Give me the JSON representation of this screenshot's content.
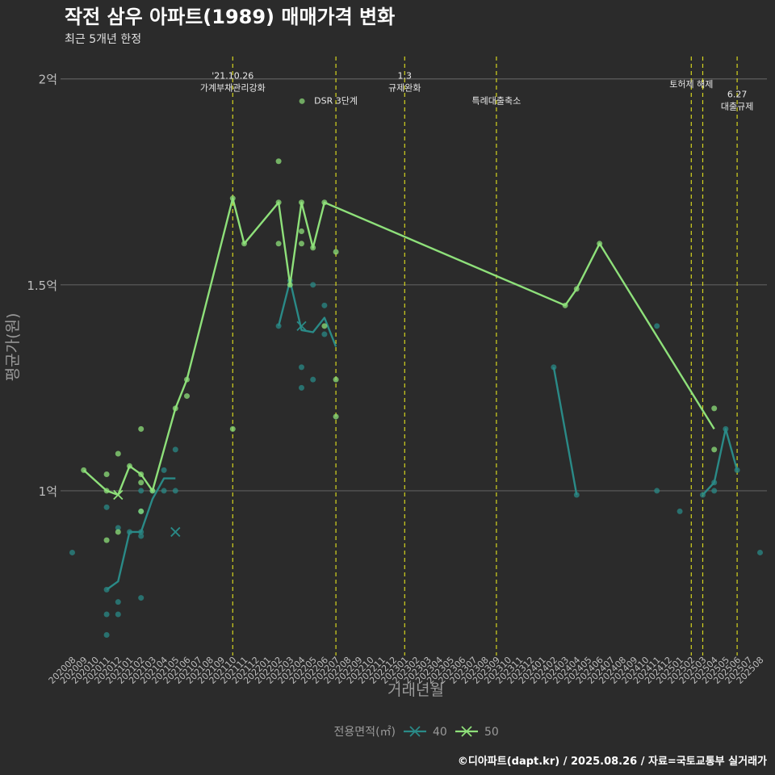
{
  "chart_data": {
    "type": "line",
    "title": "작전 삼우 아파트(1989) 매매가격 변화",
    "subtitle": "최근 5개년 한정",
    "xlabel": "거래년월",
    "ylabel": "평균가(원)",
    "caption": "©디아파트(dapt.kr) / 2025.08.26 / 자료=국토교통부 실거래가",
    "legend_title": "전용면적(㎡)",
    "legend_position": "bottom",
    "grid": true,
    "x_categories": [
      "202008",
      "202009",
      "202010",
      "202011",
      "202012",
      "202101",
      "202102",
      "202103",
      "202104",
      "202105",
      "202106",
      "202107",
      "202108",
      "202109",
      "202110",
      "202111",
      "202112",
      "202201",
      "202202",
      "202203",
      "202204",
      "202205",
      "202206",
      "202207",
      "202208",
      "202209",
      "202210",
      "202211",
      "202212",
      "202301",
      "202302",
      "202303",
      "202304",
      "202305",
      "202306",
      "202307",
      "202308",
      "202309",
      "202310",
      "202311",
      "202312",
      "202401",
      "202402",
      "202403",
      "202404",
      "202405",
      "202406",
      "202407",
      "202408",
      "202409",
      "202410",
      "202411",
      "202412",
      "202501",
      "202502",
      "202503",
      "202504",
      "202505",
      "202506",
      "202507",
      "202508"
    ],
    "y_unit": "억",
    "y_ticks": [
      {
        "value": 1.0,
        "label": "1억"
      },
      {
        "value": 1.5,
        "label": "1.5억"
      },
      {
        "value": 2.0,
        "label": "2억"
      }
    ],
    "ylim": [
      0.6,
      2.07
    ],
    "colors": {
      "40": "#2a8a87",
      "50": "#8ee07a",
      "event": "#d4d41e",
      "background": "#2b2b2b",
      "grid": "#5e5e5e",
      "text": "#bdbdbd",
      "title": "#ffffff"
    },
    "events": [
      {
        "x": "202110",
        "lines": [
          "'21.10.26",
          "가계부채관리강화"
        ],
        "label_y": 2.0
      },
      {
        "x": "202207",
        "lines": [
          "DSR 3단계"
        ],
        "label_y": 1.94,
        "dot": true
      },
      {
        "x": "202301",
        "lines": [
          "1.3",
          "규제완화"
        ],
        "label_y": 2.0
      },
      {
        "x": "202309",
        "lines": [
          "특례대출축소"
        ],
        "label_y": 1.94
      },
      {
        "x": "202502",
        "lines": [
          "토허제 해제"
        ],
        "label_y": 1.98
      },
      {
        "x": "202503",
        "lines": [],
        "label_y": 1.98
      },
      {
        "x": "202506",
        "lines": [
          "6.27",
          "대출규제"
        ],
        "label_y": 1.955
      }
    ],
    "series": [
      {
        "name": "40",
        "line": [
          {
            "x": "202011",
            "y": 0.76
          },
          {
            "x": "202012",
            "y": 0.78
          },
          {
            "x": "202101",
            "y": 0.9
          },
          {
            "x": "202102",
            "y": 0.9
          },
          {
            "x": "202103",
            "y": 0.98
          },
          {
            "x": "202104",
            "y": 1.03
          },
          {
            "x": "202105",
            "y": 1.03
          },
          {
            "x": "202202",
            "y": 1.4
          },
          {
            "x": "202203",
            "y": 1.51
          },
          {
            "x": "202204",
            "y": 1.39
          },
          {
            "x": "202205",
            "y": 1.385
          },
          {
            "x": "202206",
            "y": 1.42
          },
          {
            "x": "202207",
            "y": 1.35
          },
          {
            "x": "202402",
            "y": 1.3
          },
          {
            "x": "202404",
            "y": 0.99
          },
          {
            "x": "202503",
            "y": 0.99
          },
          {
            "x": "202504",
            "y": 1.02
          },
          {
            "x": "202505",
            "y": 1.15
          },
          {
            "x": "202506",
            "y": 1.05
          }
        ],
        "points": [
          {
            "x": "202008",
            "y": 0.85
          },
          {
            "x": "202011",
            "y": 0.96
          },
          {
            "x": "202011",
            "y": 0.76
          },
          {
            "x": "202011",
            "y": 0.7
          },
          {
            "x": "202011",
            "y": 0.65
          },
          {
            "x": "202012",
            "y": 0.91
          },
          {
            "x": "202012",
            "y": 0.73
          },
          {
            "x": "202012",
            "y": 0.7
          },
          {
            "x": "202101",
            "y": 0.9
          },
          {
            "x": "202102",
            "y": 1.0
          },
          {
            "x": "202102",
            "y": 0.95
          },
          {
            "x": "202102",
            "y": 0.9
          },
          {
            "x": "202102",
            "y": 0.89
          },
          {
            "x": "202102",
            "y": 0.74
          },
          {
            "x": "202103",
            "y": 1.0
          },
          {
            "x": "202104",
            "y": 1.05
          },
          {
            "x": "202104",
            "y": 1.0
          },
          {
            "x": "202105",
            "y": 1.1
          },
          {
            "x": "202105",
            "y": 1.0
          },
          {
            "x": "202202",
            "y": 1.4
          },
          {
            "x": "202203",
            "y": 1.51
          },
          {
            "x": "202204",
            "y": 1.3
          },
          {
            "x": "202204",
            "y": 1.25
          },
          {
            "x": "202205",
            "y": 1.5
          },
          {
            "x": "202205",
            "y": 1.27
          },
          {
            "x": "202206",
            "y": 1.45
          },
          {
            "x": "202206",
            "y": 1.38
          },
          {
            "x": "202402",
            "y": 1.3
          },
          {
            "x": "202404",
            "y": 0.99
          },
          {
            "x": "202411",
            "y": 1.4
          },
          {
            "x": "202411",
            "y": 1.0
          },
          {
            "x": "202501",
            "y": 0.95
          },
          {
            "x": "202503",
            "y": 0.99
          },
          {
            "x": "202504",
            "y": 1.02
          },
          {
            "x": "202504",
            "y": 1.0
          },
          {
            "x": "202505",
            "y": 1.15
          },
          {
            "x": "202506",
            "y": 1.05
          },
          {
            "x": "202508",
            "y": 0.85
          }
        ],
        "cross_points": [
          {
            "x": "202105",
            "y": 0.9
          },
          {
            "x": "202204",
            "y": 1.4
          }
        ]
      },
      {
        "name": "50",
        "line": [
          {
            "x": "202009",
            "y": 1.05
          },
          {
            "x": "202011",
            "y": 1.0
          },
          {
            "x": "202012",
            "y": 0.99
          },
          {
            "x": "202101",
            "y": 1.06
          },
          {
            "x": "202102",
            "y": 1.04
          },
          {
            "x": "202103",
            "y": 1.0
          },
          {
            "x": "202105",
            "y": 1.2
          },
          {
            "x": "202106",
            "y": 1.27
          },
          {
            "x": "202110",
            "y": 1.71
          },
          {
            "x": "202111",
            "y": 1.6
          },
          {
            "x": "202202",
            "y": 1.7
          },
          {
            "x": "202203",
            "y": 1.5
          },
          {
            "x": "202204",
            "y": 1.7
          },
          {
            "x": "202205",
            "y": 1.59
          },
          {
            "x": "202206",
            "y": 1.7
          },
          {
            "x": "202403",
            "y": 1.45
          },
          {
            "x": "202404",
            "y": 1.49
          },
          {
            "x": "202406",
            "y": 1.6
          },
          {
            "x": "202504",
            "y": 1.15
          }
        ],
        "points": [
          {
            "x": "202009",
            "y": 1.05
          },
          {
            "x": "202011",
            "y": 1.04
          },
          {
            "x": "202011",
            "y": 1.0
          },
          {
            "x": "202011",
            "y": 0.88
          },
          {
            "x": "202012",
            "y": 1.09
          },
          {
            "x": "202012",
            "y": 0.9
          },
          {
            "x": "202101",
            "y": 1.06
          },
          {
            "x": "202102",
            "y": 1.15
          },
          {
            "x": "202102",
            "y": 1.04
          },
          {
            "x": "202102",
            "y": 1.02
          },
          {
            "x": "202102",
            "y": 0.95
          },
          {
            "x": "202103",
            "y": 1.0
          },
          {
            "x": "202105",
            "y": 1.2
          },
          {
            "x": "202106",
            "y": 1.27
          },
          {
            "x": "202106",
            "y": 1.23
          },
          {
            "x": "202110",
            "y": 1.71
          },
          {
            "x": "202110",
            "y": 1.15
          },
          {
            "x": "202111",
            "y": 1.6
          },
          {
            "x": "202202",
            "y": 1.8
          },
          {
            "x": "202202",
            "y": 1.7
          },
          {
            "x": "202202",
            "y": 1.6
          },
          {
            "x": "202203",
            "y": 1.5
          },
          {
            "x": "202204",
            "y": 1.7
          },
          {
            "x": "202204",
            "y": 1.63
          },
          {
            "x": "202204",
            "y": 1.6
          },
          {
            "x": "202205",
            "y": 1.59
          },
          {
            "x": "202206",
            "y": 1.7
          },
          {
            "x": "202206",
            "y": 1.4
          },
          {
            "x": "202207",
            "y": 1.58
          },
          {
            "x": "202207",
            "y": 1.27
          },
          {
            "x": "202207",
            "y": 1.18
          },
          {
            "x": "202403",
            "y": 1.45
          },
          {
            "x": "202404",
            "y": 1.49
          },
          {
            "x": "202406",
            "y": 1.6
          },
          {
            "x": "202504",
            "y": 1.2
          },
          {
            "x": "202504",
            "y": 1.1
          }
        ],
        "cross_points": [
          {
            "x": "202012",
            "y": 0.99
          }
        ]
      }
    ]
  }
}
